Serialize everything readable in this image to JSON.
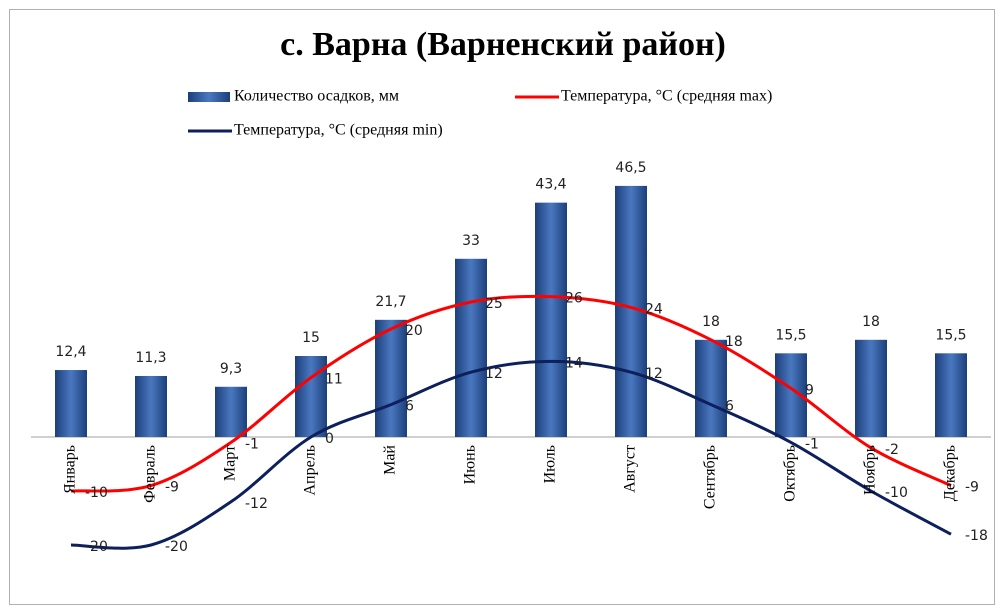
{
  "chart_data": {
    "type": "bar-line",
    "title": "с. Варна (Варненский район)",
    "categories": [
      "Январь",
      "Февраль",
      "Март",
      "Апрель",
      "Май",
      "Июнь",
      "Июль",
      "Август",
      "Сентябрь",
      "Октябрь",
      "Ноябрь",
      "Декабрь"
    ],
    "series": [
      {
        "name": "Количество осадков, мм",
        "type": "bar",
        "color": "#2e5a9c",
        "values": [
          12.4,
          11.3,
          9.3,
          15,
          21.7,
          33,
          43.4,
          46.5,
          18,
          15.5,
          18,
          15.5
        ],
        "value_labels": [
          "12,4",
          "11,3",
          "9,3",
          "15",
          "21,7",
          "33",
          "43,4",
          "46,5",
          "18",
          "15,5",
          "18",
          "15,5"
        ]
      },
      {
        "name": "Температура, °C (средняя max)",
        "type": "line",
        "color": "#ff0000",
        "values": [
          -10,
          -9,
          -1,
          11,
          20,
          25,
          26,
          24,
          18,
          9,
          -2,
          -9
        ]
      },
      {
        "name": "Температура, °C (средняя min)",
        "type": "line",
        "color": "#0d1f5c",
        "values": [
          -20,
          -20,
          -12,
          0,
          6,
          12,
          14,
          12,
          6,
          -1,
          -10,
          -18
        ]
      }
    ],
    "ylim": [
      -25,
      50
    ]
  }
}
